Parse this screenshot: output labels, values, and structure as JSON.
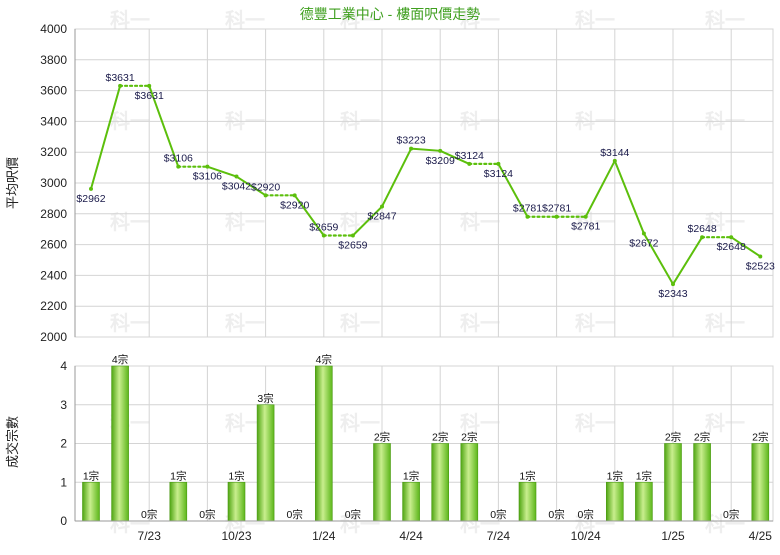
{
  "chart_data": [
    {
      "type": "line",
      "title": "德豐工業中心 - 樓面呎價走勢",
      "ylabel": "平均呎價",
      "ylim": [
        2000,
        4000
      ],
      "yticks": [
        2000,
        2200,
        2400,
        2600,
        2800,
        3000,
        3200,
        3400,
        3600,
        3800,
        4000
      ],
      "xtick_labels": [
        "7/23",
        "10/23",
        "1/24",
        "4/24",
        "7/24",
        "10/24",
        "1/25",
        "4/25"
      ],
      "grid": true,
      "series": [
        {
          "color": "#5cbf0c",
          "values": [
            2962,
            3631,
            3631,
            3106,
            3106,
            3042,
            2920,
            2920,
            2659,
            2659,
            2847,
            3223,
            3209,
            3124,
            3124,
            2781,
            2781,
            2781,
            3144,
            2672,
            2343,
            2648,
            2648,
            2523
          ],
          "labels": [
            "$2962",
            "$3631",
            "$3631",
            "$3106",
            "$3106",
            "$3042",
            "$2920",
            "$2920",
            "$2659",
            "$2659",
            "$2847",
            "$3223",
            "$3209",
            "$3124",
            "$3124",
            "$2781",
            "$2781",
            "$2781",
            "$3144",
            "$2672",
            "$2343",
            "$2648",
            "$2648",
            "$2523"
          ],
          "dotted": [
            false,
            false,
            true,
            false,
            true,
            false,
            false,
            true,
            false,
            true,
            false,
            false,
            false,
            false,
            true,
            false,
            true,
            true,
            false,
            false,
            false,
            false,
            true,
            false
          ]
        }
      ]
    },
    {
      "type": "bar",
      "ylabel": "成交宗數",
      "ylim": [
        0,
        4
      ],
      "yticks": [
        0,
        1,
        2,
        3,
        4
      ],
      "xtick_labels": [
        "7/23",
        "10/23",
        "1/24",
        "4/24",
        "7/24",
        "10/24",
        "1/25",
        "4/25"
      ],
      "grid": true,
      "color": "#6cc22a",
      "values": [
        1,
        4,
        0,
        1,
        0,
        1,
        3,
        0,
        4,
        0,
        2,
        1,
        2,
        2,
        0,
        1,
        0,
        0,
        1,
        1,
        2,
        2,
        0,
        2
      ],
      "labels": [
        "1宗",
        "4宗",
        "0宗",
        "1宗",
        "0宗",
        "1宗",
        "3宗",
        "0宗",
        "4宗",
        "0宗",
        "2宗",
        "1宗",
        "2宗",
        "2宗",
        "0宗",
        "1宗",
        "0宗",
        "0宗",
        "1宗",
        "1宗",
        "2宗",
        "2宗",
        "0宗",
        "2宗"
      ]
    }
  ],
  "watermark": "科一",
  "colors": {
    "line": "#5cbf0c",
    "bar": "#6cc22a",
    "title": "#3f9f1f",
    "grid": "#d4d4d4"
  }
}
